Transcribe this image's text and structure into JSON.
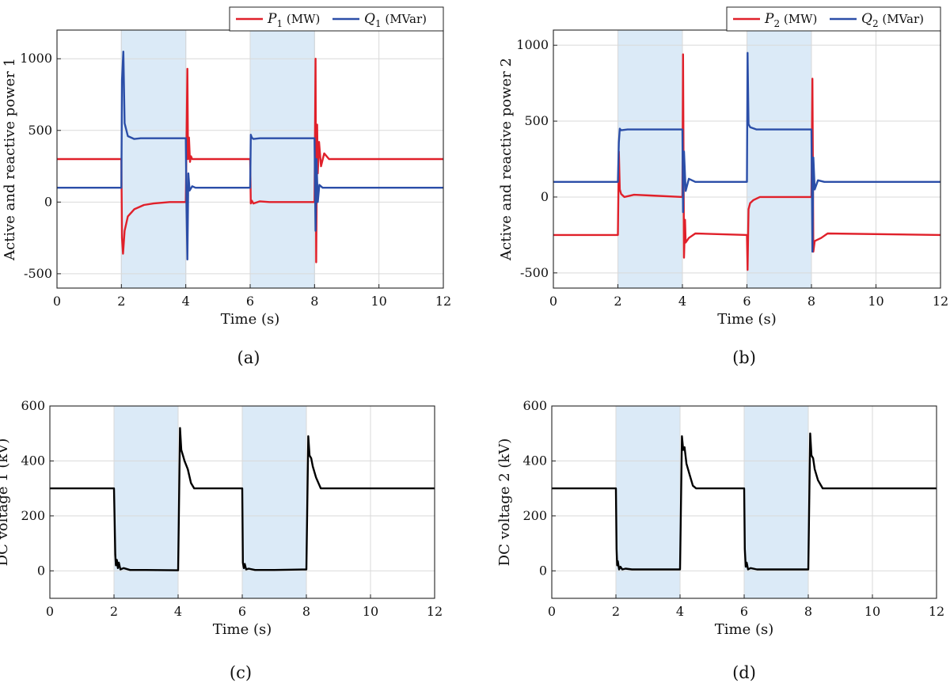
{
  "chart_data": [
    {
      "id": "a",
      "type": "line",
      "caption": "(a)",
      "xlabel": "Time (s)",
      "ylabel": "Active and reactive power 1",
      "xlim": [
        0,
        12
      ],
      "ylim": [
        -600,
        1200
      ],
      "xticks": [
        "0",
        "2",
        "4",
        "6",
        "8",
        "10",
        "12"
      ],
      "yticks": [
        "-500",
        "0",
        "500",
        "1000"
      ],
      "ytick_values": [
        -500,
        0,
        500,
        1000
      ],
      "grid": true,
      "legend_position": "top-right",
      "shaded_intervals": [
        [
          2,
          4
        ],
        [
          6,
          8
        ]
      ],
      "series": [
        {
          "name": "P1 (MW)",
          "legend_main": "P",
          "legend_sub": "1",
          "legend_unit": " (MW)",
          "color": "#e0202a",
          "x": [
            0,
            2,
            2.02,
            2.05,
            2.1,
            2.2,
            2.4,
            2.7,
            3.0,
            3.5,
            4.0,
            4.05,
            4.07,
            4.1,
            4.13,
            4.16,
            4.2,
            4.4,
            6.0,
            6.02,
            6.05,
            6.1,
            6.3,
            6.6,
            7.0,
            8.0,
            8.03,
            8.05,
            8.08,
            8.1,
            8.14,
            8.2,
            8.3,
            8.45,
            12
          ],
          "y": [
            300,
            300,
            -250,
            -360,
            -200,
            -100,
            -50,
            -20,
            -10,
            0,
            0,
            930,
            300,
            450,
            280,
            320,
            300,
            300,
            300,
            -10,
            10,
            -10,
            5,
            0,
            0,
            0,
            1000,
            -420,
            540,
            200,
            420,
            250,
            340,
            300,
            300
          ]
        },
        {
          "name": "Q1 (MVar)",
          "legend_main": "Q",
          "legend_sub": "1",
          "legend_unit": " (MVar)",
          "color": "#2b4ea8",
          "x": [
            0,
            2,
            2.02,
            2.06,
            2.1,
            2.2,
            2.4,
            2.6,
            3.0,
            4.0,
            4.02,
            4.05,
            4.08,
            4.12,
            4.2,
            4.3,
            6.0,
            6.02,
            6.05,
            6.1,
            6.3,
            7.0,
            8.0,
            8.03,
            8.06,
            8.1,
            8.15,
            8.25,
            12
          ],
          "y": [
            100,
            100,
            850,
            1050,
            550,
            460,
            440,
            445,
            445,
            445,
            0,
            -400,
            200,
            80,
            110,
            100,
            100,
            470,
            450,
            440,
            445,
            445,
            445,
            -200,
            300,
            0,
            120,
            100,
            100
          ]
        }
      ]
    },
    {
      "id": "b",
      "type": "line",
      "caption": "(b)",
      "xlabel": "Time (s)",
      "ylabel": "Active and reactive power 2",
      "xlim": [
        0,
        12
      ],
      "ylim": [
        -600,
        1100
      ],
      "xticks": [
        "0",
        "2",
        "4",
        "6",
        "8",
        "10",
        "12"
      ],
      "yticks": [
        "-500",
        "0",
        "500",
        "1000"
      ],
      "ytick_values": [
        -500,
        0,
        500,
        1000
      ],
      "grid": true,
      "legend_position": "top-right",
      "shaded_intervals": [
        [
          2,
          4
        ],
        [
          6,
          8
        ]
      ],
      "series": [
        {
          "name": "P2 (MW)",
          "legend_main": "P",
          "legend_sub": "2",
          "legend_unit": " (MW)",
          "color": "#e0202a",
          "x": [
            0,
            2,
            2.03,
            2.06,
            2.1,
            2.2,
            2.5,
            3.0,
            4.0,
            4.02,
            4.05,
            4.08,
            4.1,
            4.2,
            4.4,
            6.0,
            6.02,
            6.05,
            6.1,
            6.2,
            6.4,
            7.0,
            8.0,
            8.03,
            8.06,
            8.1,
            8.3,
            8.5,
            12
          ],
          "y": [
            -250,
            -250,
            300,
            50,
            20,
            0,
            15,
            10,
            0,
            940,
            -400,
            -150,
            -300,
            -270,
            -240,
            -250,
            -480,
            -80,
            -40,
            -20,
            0,
            0,
            0,
            780,
            -360,
            -290,
            -270,
            -240,
            -250
          ]
        },
        {
          "name": "Q2 (MVar)",
          "legend_main": "Q",
          "legend_sub": "2",
          "legend_unit": " (MVar)",
          "color": "#2b4ea8",
          "x": [
            0,
            2,
            2.03,
            2.06,
            2.1,
            2.3,
            3.0,
            4.0,
            4.02,
            4.05,
            4.1,
            4.2,
            4.4,
            6.0,
            6.02,
            6.05,
            6.1,
            6.3,
            7.0,
            8.0,
            8.03,
            8.06,
            8.1,
            8.2,
            8.4,
            12
          ],
          "y": [
            100,
            100,
            360,
            450,
            440,
            445,
            445,
            445,
            -100,
            300,
            40,
            120,
            100,
            100,
            950,
            480,
            460,
            445,
            445,
            445,
            -360,
            260,
            50,
            110,
            100,
            100
          ]
        }
      ]
    },
    {
      "id": "c",
      "type": "line",
      "caption": "(c)",
      "xlabel": "Time (s)",
      "ylabel": "DC voltage 1 (kV)",
      "xlim": [
        0,
        12
      ],
      "ylim": [
        -100,
        600
      ],
      "xticks": [
        "0",
        "2",
        "4",
        "6",
        "8",
        "10",
        "12"
      ],
      "yticks": [
        "0",
        "200",
        "400",
        "600"
      ],
      "ytick_values": [
        0,
        200,
        400,
        600
      ],
      "grid": true,
      "shaded_intervals": [
        [
          2,
          4
        ],
        [
          6,
          8
        ]
      ],
      "series": [
        {
          "color": "#000000",
          "x": [
            0,
            2,
            2.02,
            2.04,
            2.06,
            2.09,
            2.12,
            2.15,
            2.2,
            2.3,
            2.5,
            3.0,
            4.0,
            4.06,
            4.1,
            4.15,
            4.2,
            4.3,
            4.4,
            4.5,
            5.0,
            6.0,
            6.02,
            6.05,
            6.08,
            6.12,
            6.2,
            6.4,
            7.0,
            8.0,
            8.06,
            8.1,
            8.15,
            8.2,
            8.3,
            8.45,
            8.6,
            12
          ],
          "y": [
            300,
            300,
            180,
            60,
            20,
            40,
            10,
            30,
            5,
            10,
            3,
            3,
            2,
            520,
            440,
            420,
            400,
            370,
            320,
            300,
            300,
            300,
            30,
            10,
            25,
            5,
            8,
            3,
            3,
            5,
            490,
            420,
            410,
            380,
            340,
            300,
            300,
            300
          ]
        }
      ]
    },
    {
      "id": "d",
      "type": "line",
      "caption": "(d)",
      "xlabel": "Time (s)",
      "ylabel": "DC voltage 2 (kV)",
      "xlim": [
        0,
        12
      ],
      "ylim": [
        -100,
        600
      ],
      "xticks": [
        "0",
        "2",
        "4",
        "6",
        "8",
        "10",
        "12"
      ],
      "yticks": [
        "0",
        "200",
        "400",
        "600"
      ],
      "ytick_values": [
        0,
        200,
        400,
        600
      ],
      "grid": true,
      "shaded_intervals": [
        [
          2,
          4
        ],
        [
          6,
          8
        ]
      ],
      "series": [
        {
          "color": "#000000",
          "x": [
            0,
            2,
            2.02,
            2.04,
            2.06,
            2.1,
            2.14,
            2.2,
            2.3,
            2.5,
            3.0,
            4.0,
            4.06,
            4.1,
            4.14,
            4.2,
            4.3,
            4.4,
            4.5,
            5.0,
            6.0,
            6.02,
            6.05,
            6.08,
            6.12,
            6.2,
            6.4,
            7.0,
            8.0,
            8.06,
            8.1,
            8.15,
            8.2,
            8.3,
            8.45,
            8.6,
            12
          ],
          "y": [
            300,
            300,
            80,
            20,
            35,
            5,
            15,
            5,
            8,
            5,
            5,
            5,
            490,
            440,
            450,
            390,
            350,
            310,
            300,
            300,
            300,
            80,
            15,
            30,
            5,
            10,
            5,
            5,
            5,
            500,
            420,
            410,
            370,
            330,
            300,
            300,
            300
          ]
        }
      ]
    }
  ]
}
